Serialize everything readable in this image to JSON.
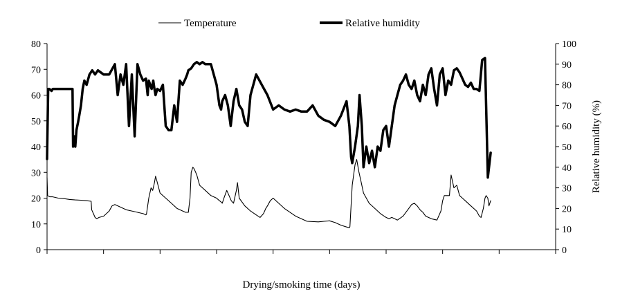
{
  "chart_data": {
    "type": "line",
    "title": "",
    "xlabel": "Drying/smoking time (days)",
    "ylabel_left": "",
    "ylabel_right": "Relative humidity (%)",
    "grid": false,
    "legend_position": "top",
    "x_ticks_count": 9,
    "xlim": [
      0,
      9
    ],
    "ylim_left": [
      0,
      80
    ],
    "ylim_right": [
      0,
      100
    ],
    "y_ticks_left": [
      "0",
      "10",
      "20",
      "30",
      "40",
      "50",
      "60",
      "70",
      "80"
    ],
    "y_ticks_right": [
      "0",
      "10",
      "20",
      "30",
      "40",
      "50",
      "60",
      "70",
      "80",
      "90",
      "100"
    ],
    "series": [
      {
        "name": "Temperature",
        "axis": "left",
        "color": "#000000",
        "style": "thin",
        "x": [
          0.0,
          0.01,
          0.05,
          0.1,
          0.2,
          0.3,
          0.4,
          0.5,
          0.6,
          0.7,
          0.78,
          0.79,
          0.82,
          0.85,
          0.88,
          0.92,
          1.0,
          1.05,
          1.1,
          1.15,
          1.2,
          1.3,
          1.4,
          1.5,
          1.6,
          1.7,
          1.75,
          1.76,
          1.8,
          1.84,
          1.87,
          1.9,
          1.92,
          1.94,
          2.0,
          2.1,
          2.2,
          2.3,
          2.4,
          2.45,
          2.48,
          2.5,
          2.53,
          2.55,
          2.58,
          2.6,
          2.62,
          2.65,
          2.7,
          2.8,
          2.9,
          3.0,
          3.05,
          3.08,
          3.1,
          3.13,
          3.18,
          3.22,
          3.26,
          3.3,
          3.35,
          3.37,
          3.4,
          3.5,
          3.6,
          3.7,
          3.77,
          3.83,
          3.87,
          3.9,
          3.95,
          4.0,
          4.2,
          4.4,
          4.6,
          4.8,
          4.9,
          5.0,
          5.1,
          5.2,
          5.3,
          5.35,
          5.36,
          5.4,
          5.45,
          5.48,
          5.52,
          5.55,
          5.6,
          5.7,
          5.8,
          5.9,
          6.0,
          6.05,
          6.1,
          6.15,
          6.2,
          6.3,
          6.4,
          6.45,
          6.5,
          6.55,
          6.6,
          6.65,
          6.7,
          6.75,
          6.8,
          6.9,
          6.97,
          7.0,
          7.03,
          7.08,
          7.12,
          7.15,
          7.2,
          7.25,
          7.3,
          7.35,
          7.4,
          7.5,
          7.6,
          7.65,
          7.68,
          7.72,
          7.75,
          7.77,
          7.8,
          7.82,
          7.85
        ],
        "values": [
          28,
          21,
          20.5,
          20.5,
          20,
          19.8,
          19.5,
          19.3,
          19.2,
          19,
          18.8,
          15.5,
          14,
          12.5,
          12,
          12.5,
          13,
          14,
          15,
          17,
          17.5,
          16.5,
          15.5,
          15,
          14.5,
          14,
          13.5,
          13.8,
          20,
          24,
          23,
          26,
          28.5,
          27,
          22,
          20,
          18,
          16,
          15,
          14.5,
          14.5,
          14.5,
          20,
          30,
          32,
          31.5,
          30.5,
          29,
          25,
          23,
          21,
          20,
          19,
          18.5,
          18,
          20,
          23,
          21,
          19,
          18,
          23,
          26,
          20,
          17,
          15,
          13.5,
          12.5,
          14,
          16,
          17,
          19,
          20,
          16,
          13,
          11,
          10.8,
          11,
          11.2,
          10.5,
          9.5,
          8.8,
          8.5,
          9,
          25,
          33,
          35,
          30,
          27,
          22,
          18,
          16,
          14,
          12.5,
          12,
          12.5,
          12,
          11.5,
          13,
          16,
          17.5,
          18,
          17,
          15.5,
          14.5,
          13,
          12.5,
          12,
          11.5,
          15,
          19,
          21,
          21,
          21,
          29,
          24,
          25,
          21,
          20,
          19,
          17,
          15,
          13,
          12.5,
          16,
          20,
          21,
          20,
          17,
          19
        ]
      },
      {
        "name": "Relative humidity",
        "axis": "right",
        "color": "#000000",
        "style": "thick",
        "x": [
          0.0,
          0.02,
          0.04,
          0.08,
          0.1,
          0.15,
          0.2,
          0.3,
          0.4,
          0.45,
          0.46,
          0.48,
          0.5,
          0.52,
          0.55,
          0.57,
          0.6,
          0.63,
          0.66,
          0.7,
          0.75,
          0.8,
          0.85,
          0.9,
          1.0,
          1.1,
          1.2,
          1.25,
          1.3,
          1.35,
          1.4,
          1.45,
          1.5,
          1.55,
          1.6,
          1.65,
          1.7,
          1.75,
          1.78,
          1.8,
          1.85,
          1.88,
          1.9,
          1.92,
          1.95,
          2.0,
          2.05,
          2.1,
          2.15,
          2.2,
          2.25,
          2.3,
          2.35,
          2.4,
          2.45,
          2.48,
          2.5,
          2.55,
          2.6,
          2.65,
          2.7,
          2.75,
          2.8,
          2.9,
          3.0,
          3.05,
          3.08,
          3.1,
          3.15,
          3.2,
          3.25,
          3.3,
          3.35,
          3.4,
          3.45,
          3.5,
          3.55,
          3.6,
          3.7,
          3.8,
          3.9,
          4.0,
          4.1,
          4.2,
          4.3,
          4.4,
          4.5,
          4.6,
          4.7,
          4.8,
          4.9,
          5.0,
          5.1,
          5.2,
          5.3,
          5.35,
          5.38,
          5.4,
          5.45,
          5.5,
          5.53,
          5.57,
          5.6,
          5.65,
          5.7,
          5.75,
          5.8,
          5.85,
          5.9,
          5.95,
          6.0,
          6.05,
          6.1,
          6.15,
          6.2,
          6.25,
          6.3,
          6.35,
          6.4,
          6.45,
          6.5,
          6.55,
          6.6,
          6.65,
          6.7,
          6.75,
          6.8,
          6.85,
          6.9,
          6.95,
          7.0,
          7.05,
          7.1,
          7.15,
          7.2,
          7.25,
          7.3,
          7.35,
          7.4,
          7.45,
          7.5,
          7.55,
          7.6,
          7.65,
          7.7,
          7.75,
          7.8,
          7.85
        ],
        "values": [
          44,
          78,
          78,
          77,
          78,
          78,
          78,
          78,
          78,
          78,
          50,
          55,
          50,
          58,
          62,
          65,
          70,
          78,
          82,
          80,
          85,
          87,
          85,
          87,
          85,
          85,
          90,
          75,
          85,
          80,
          90,
          60,
          85,
          55,
          90,
          85,
          82,
          83,
          75,
          82,
          78,
          82,
          78,
          75,
          78,
          77,
          80,
          60,
          58,
          58,
          70,
          62,
          82,
          80,
          83,
          85,
          87,
          88,
          90,
          91,
          90,
          91,
          90,
          90,
          80,
          70,
          68,
          72,
          75,
          70,
          60,
          72,
          78,
          70,
          68,
          62,
          60,
          75,
          85,
          80,
          75,
          68,
          70,
          68,
          67,
          68,
          67,
          67,
          70,
          65,
          63,
          62,
          60,
          65,
          72,
          60,
          45,
          42,
          50,
          60,
          75,
          60,
          40,
          50,
          42,
          48,
          40,
          50,
          48,
          58,
          60,
          50,
          60,
          70,
          75,
          80,
          82,
          85,
          80,
          78,
          82,
          75,
          72,
          80,
          75,
          85,
          88,
          78,
          70,
          85,
          88,
          75,
          82,
          80,
          87,
          88,
          86,
          83,
          80,
          79,
          81,
          78,
          78,
          77,
          92,
          93,
          35,
          47
        ]
      }
    ]
  }
}
